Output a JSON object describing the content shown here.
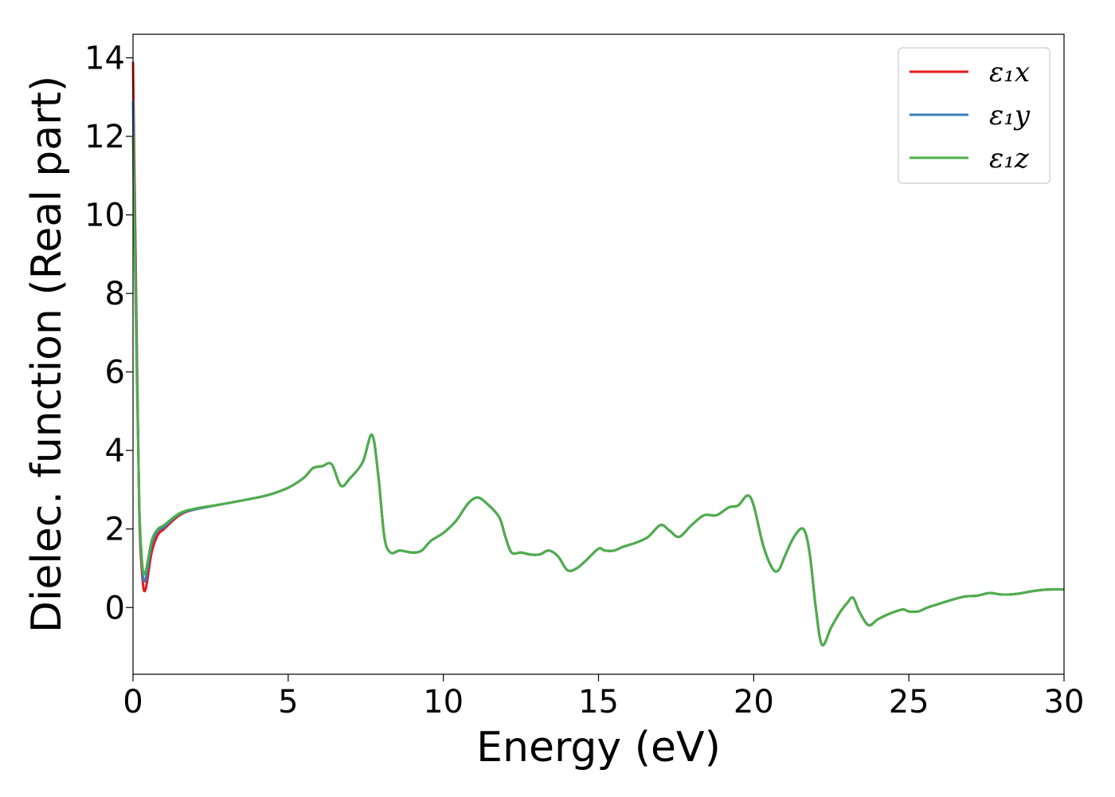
{
  "chart_data": {
    "type": "line",
    "title": "",
    "xlabel": "Energy (eV)",
    "ylabel": "Dielec. function (Real part)",
    "xlim": [
      0,
      30
    ],
    "ylim": [
      -1.7,
      14.6
    ],
    "xticks": [
      "0",
      "5",
      "10",
      "15",
      "20",
      "25",
      "30"
    ],
    "yticks": [
      "0",
      "2",
      "4",
      "6",
      "8",
      "10",
      "12",
      "14"
    ],
    "grid": false,
    "legend_position": "top-right",
    "series": [
      {
        "name": "ε₁x",
        "color": "#e41a1c",
        "x": [
          0.0,
          0.1,
          0.2,
          0.3,
          0.4,
          0.6,
          0.8,
          1.0,
          1.5,
          2.0,
          3.0,
          4.0,
          4.5,
          5.0,
          5.5,
          5.8,
          6.1,
          6.4,
          6.7,
          7.0,
          7.4,
          7.7,
          7.9,
          8.1,
          8.3,
          8.6,
          9.0,
          9.3,
          9.6,
          10.0,
          10.4,
          10.8,
          11.1,
          11.4,
          11.8,
          12.0,
          12.2,
          12.5,
          12.8,
          13.1,
          13.4,
          13.7,
          14.0,
          14.3,
          14.6,
          15.0,
          15.2,
          15.5,
          15.8,
          16.2,
          16.6,
          17.0,
          17.3,
          17.6,
          18.0,
          18.4,
          18.8,
          19.2,
          19.5,
          19.8,
          20.0,
          20.3,
          20.6,
          20.8,
          21.0,
          21.3,
          21.6,
          21.8,
          22.0,
          22.2,
          22.5,
          22.8,
          23.0,
          23.2,
          23.4,
          23.7,
          24.0,
          24.4,
          24.8,
          25.0,
          25.3,
          25.6,
          26.0,
          26.4,
          26.8,
          27.2,
          27.6,
          28.0,
          28.5,
          29.0,
          29.5,
          30.0
        ],
        "y": [
          13.9,
          8.0,
          2.5,
          0.8,
          0.45,
          1.4,
          1.85,
          2.0,
          2.35,
          2.5,
          2.65,
          2.8,
          2.9,
          3.05,
          3.3,
          3.55,
          3.6,
          3.65,
          3.1,
          3.3,
          3.7,
          4.4,
          3.4,
          1.8,
          1.4,
          1.45,
          1.4,
          1.45,
          1.7,
          1.9,
          2.2,
          2.65,
          2.8,
          2.65,
          2.3,
          1.8,
          1.4,
          1.4,
          1.35,
          1.35,
          1.45,
          1.3,
          0.95,
          1.0,
          1.2,
          1.5,
          1.45,
          1.45,
          1.55,
          1.65,
          1.8,
          2.1,
          1.95,
          1.8,
          2.1,
          2.35,
          2.35,
          2.55,
          2.6,
          2.85,
          2.6,
          1.6,
          1.0,
          0.95,
          1.3,
          1.8,
          2.0,
          1.4,
          0.0,
          -0.95,
          -0.5,
          -0.1,
          0.1,
          0.25,
          -0.1,
          -0.45,
          -0.3,
          -0.15,
          -0.05,
          -0.1,
          -0.1,
          0.0,
          0.1,
          0.2,
          0.28,
          0.3,
          0.37,
          0.33,
          0.35,
          0.42,
          0.46,
          0.46
        ]
      },
      {
        "name": "ε₁y",
        "color": "#377eb8",
        "x": [
          0.0,
          0.1,
          0.2,
          0.3,
          0.4,
          0.6,
          0.8,
          1.0,
          1.5,
          2.0,
          3.0,
          4.0,
          4.5,
          5.0,
          5.5,
          5.8,
          6.1,
          6.4,
          6.7,
          7.0,
          7.4,
          7.7,
          7.9,
          8.1,
          8.3,
          8.6,
          9.0,
          9.3,
          9.6,
          10.0,
          10.4,
          10.8,
          11.1,
          11.4,
          11.8,
          12.0,
          12.2,
          12.5,
          12.8,
          13.1,
          13.4,
          13.7,
          14.0,
          14.3,
          14.6,
          15.0,
          15.2,
          15.5,
          15.8,
          16.2,
          16.6,
          17.0,
          17.3,
          17.6,
          18.0,
          18.4,
          18.8,
          19.2,
          19.5,
          19.8,
          20.0,
          20.3,
          20.6,
          20.8,
          21.0,
          21.3,
          21.6,
          21.8,
          22.0,
          22.2,
          22.5,
          22.8,
          23.0,
          23.2,
          23.4,
          23.7,
          24.0,
          24.4,
          24.8,
          25.0,
          25.3,
          25.6,
          26.0,
          26.4,
          26.8,
          27.2,
          27.6,
          28.0,
          28.5,
          29.0,
          29.5,
          30.0
        ],
        "y": [
          12.9,
          7.5,
          2.6,
          1.0,
          0.7,
          1.6,
          1.95,
          2.05,
          2.38,
          2.5,
          2.65,
          2.8,
          2.9,
          3.05,
          3.3,
          3.55,
          3.6,
          3.65,
          3.1,
          3.3,
          3.7,
          4.4,
          3.4,
          1.8,
          1.4,
          1.45,
          1.4,
          1.45,
          1.7,
          1.9,
          2.2,
          2.65,
          2.8,
          2.65,
          2.3,
          1.8,
          1.4,
          1.4,
          1.35,
          1.35,
          1.45,
          1.3,
          0.95,
          1.0,
          1.2,
          1.5,
          1.45,
          1.45,
          1.55,
          1.65,
          1.8,
          2.1,
          1.95,
          1.8,
          2.1,
          2.35,
          2.35,
          2.55,
          2.6,
          2.85,
          2.6,
          1.6,
          1.0,
          0.95,
          1.3,
          1.8,
          2.0,
          1.4,
          0.0,
          -0.95,
          -0.5,
          -0.1,
          0.1,
          0.25,
          -0.1,
          -0.45,
          -0.3,
          -0.15,
          -0.05,
          -0.1,
          -0.1,
          0.0,
          0.1,
          0.2,
          0.28,
          0.3,
          0.37,
          0.33,
          0.35,
          0.42,
          0.46,
          0.46
        ]
      },
      {
        "name": "ε₁z",
        "color": "#4daf4a",
        "x": [
          0.0,
          0.1,
          0.2,
          0.3,
          0.4,
          0.6,
          0.8,
          1.0,
          1.5,
          2.0,
          3.0,
          4.0,
          4.5,
          5.0,
          5.5,
          5.8,
          6.1,
          6.4,
          6.7,
          7.0,
          7.4,
          7.7,
          7.9,
          8.1,
          8.3,
          8.6,
          9.0,
          9.3,
          9.6,
          10.0,
          10.4,
          10.8,
          11.1,
          11.4,
          11.8,
          12.0,
          12.2,
          12.5,
          12.8,
          13.1,
          13.4,
          13.7,
          14.0,
          14.3,
          14.6,
          15.0,
          15.2,
          15.5,
          15.8,
          16.2,
          16.6,
          17.0,
          17.3,
          17.6,
          18.0,
          18.4,
          18.8,
          19.2,
          19.5,
          19.8,
          20.0,
          20.3,
          20.6,
          20.8,
          21.0,
          21.3,
          21.6,
          21.8,
          22.0,
          22.2,
          22.5,
          22.8,
          23.0,
          23.2,
          23.4,
          23.7,
          24.0,
          24.4,
          24.8,
          25.0,
          25.3,
          25.6,
          26.0,
          26.4,
          26.8,
          27.2,
          27.6,
          28.0,
          28.5,
          29.0,
          29.5,
          30.0
        ],
        "y": [
          12.0,
          7.0,
          2.7,
          1.1,
          0.9,
          1.7,
          2.0,
          2.1,
          2.4,
          2.52,
          2.65,
          2.8,
          2.9,
          3.05,
          3.3,
          3.55,
          3.6,
          3.65,
          3.1,
          3.3,
          3.7,
          4.4,
          3.4,
          1.8,
          1.4,
          1.45,
          1.4,
          1.45,
          1.7,
          1.9,
          2.2,
          2.65,
          2.8,
          2.65,
          2.3,
          1.8,
          1.4,
          1.4,
          1.35,
          1.35,
          1.45,
          1.3,
          0.95,
          1.0,
          1.2,
          1.5,
          1.45,
          1.45,
          1.55,
          1.65,
          1.8,
          2.1,
          1.95,
          1.8,
          2.1,
          2.35,
          2.35,
          2.55,
          2.6,
          2.85,
          2.6,
          1.6,
          1.0,
          0.95,
          1.3,
          1.8,
          2.0,
          1.4,
          0.0,
          -0.95,
          -0.5,
          -0.1,
          0.1,
          0.25,
          -0.1,
          -0.45,
          -0.3,
          -0.15,
          -0.05,
          -0.1,
          -0.1,
          0.0,
          0.1,
          0.2,
          0.28,
          0.3,
          0.37,
          0.33,
          0.35,
          0.42,
          0.46,
          0.46
        ]
      }
    ]
  }
}
